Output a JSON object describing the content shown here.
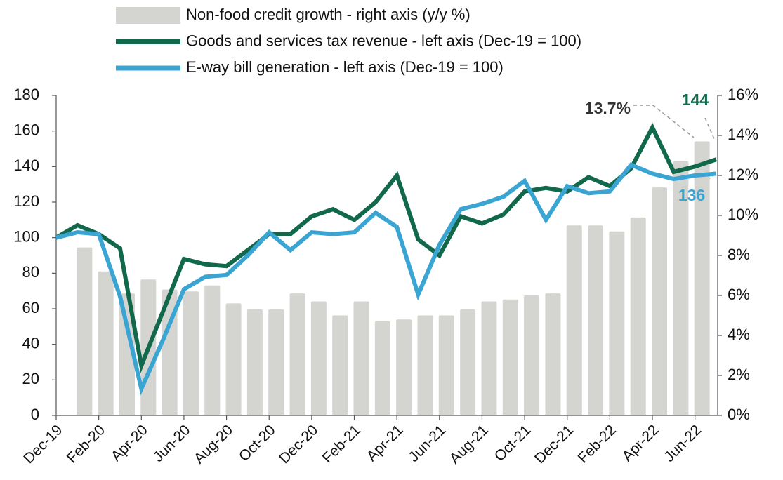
{
  "chart_data": {
    "type": "combo",
    "categories": [
      "Dec-19",
      null,
      "Feb-20",
      null,
      "Apr-20",
      null,
      "Jun-20",
      null,
      "Aug-20",
      null,
      "Oct-20",
      null,
      "Dec-20",
      null,
      "Feb-21",
      null,
      "Apr-21",
      null,
      "Jun-21",
      null,
      "Aug-21",
      null,
      "Oct-21",
      null,
      "Dec-21",
      null,
      "Feb-22",
      null,
      "Apr-22",
      null,
      "Jun-22",
      null
    ],
    "series": [
      {
        "name": "Non-food credit growth - right axis (y/y %)",
        "type": "bar",
        "axis": "y2",
        "color": "#d4d4d1",
        "values": [
          null,
          8.4,
          7.2,
          6.1,
          6.8,
          6.3,
          6.2,
          6.5,
          5.6,
          5.3,
          5.3,
          6.1,
          5.7,
          5.0,
          5.7,
          4.7,
          4.8,
          5.0,
          5.0,
          5.3,
          5.7,
          5.8,
          6.0,
          6.1,
          9.5,
          9.5,
          9.2,
          9.9,
          11.4,
          12.7,
          13.7,
          null
        ],
        "value_labels": [
          null,
          null,
          null,
          null,
          null,
          null,
          null,
          null,
          null,
          null,
          null,
          null,
          null,
          null,
          null,
          null,
          null,
          null,
          null,
          null,
          null,
          null,
          null,
          null,
          null,
          null,
          null,
          null,
          null,
          null,
          "13.7%",
          null
        ]
      },
      {
        "name": "Goods and services tax revenue - left axis (Dec-19 = 100)",
        "type": "line",
        "color": "#11684a",
        "values": [
          100,
          107,
          102,
          94,
          28,
          58,
          88,
          85,
          84,
          93,
          102,
          102,
          112,
          116,
          110,
          120,
          135,
          99,
          90,
          112,
          108,
          113,
          126,
          128,
          126,
          134,
          129,
          139,
          162,
          137,
          140,
          144
        ],
        "value_labels": [
          null,
          null,
          null,
          null,
          null,
          null,
          null,
          null,
          null,
          null,
          null,
          null,
          null,
          null,
          null,
          null,
          null,
          null,
          null,
          null,
          null,
          null,
          null,
          null,
          null,
          null,
          null,
          null,
          null,
          null,
          null,
          "144"
        ]
      },
      {
        "name": "E-way bill generation - left axis (Dec-19 = 100)",
        "type": "line",
        "color": "#3aa5d3",
        "values": [
          100,
          103,
          102,
          67,
          15,
          42,
          71,
          78,
          79,
          90,
          103,
          93,
          103,
          102,
          103,
          114,
          106,
          68,
          96,
          116,
          119,
          123,
          132,
          110,
          129,
          125,
          126,
          141,
          136,
          133,
          135,
          136
        ],
        "value_labels": [
          null,
          null,
          null,
          null,
          null,
          null,
          null,
          null,
          null,
          null,
          null,
          null,
          null,
          null,
          null,
          null,
          null,
          null,
          null,
          null,
          null,
          null,
          null,
          null,
          null,
          null,
          null,
          null,
          null,
          null,
          null,
          "136"
        ]
      }
    ],
    "ylim": [
      0,
      180
    ],
    "yticks": [
      0,
      20,
      40,
      60,
      80,
      100,
      120,
      140,
      160,
      180
    ],
    "y2lim": [
      0,
      16
    ],
    "y2ticks": [
      {
        "value": 0,
        "label": "0%"
      },
      {
        "value": 2,
        "label": "2%"
      },
      {
        "value": 4,
        "label": "4%"
      },
      {
        "value": 6,
        "label": "6%"
      },
      {
        "value": 8,
        "label": "8%"
      },
      {
        "value": 10,
        "label": "10%"
      },
      {
        "value": 12,
        "label": "12%"
      },
      {
        "value": 14,
        "label": "14%"
      },
      {
        "value": 16,
        "label": "16%"
      }
    ],
    "grid": false,
    "legend": "top"
  }
}
